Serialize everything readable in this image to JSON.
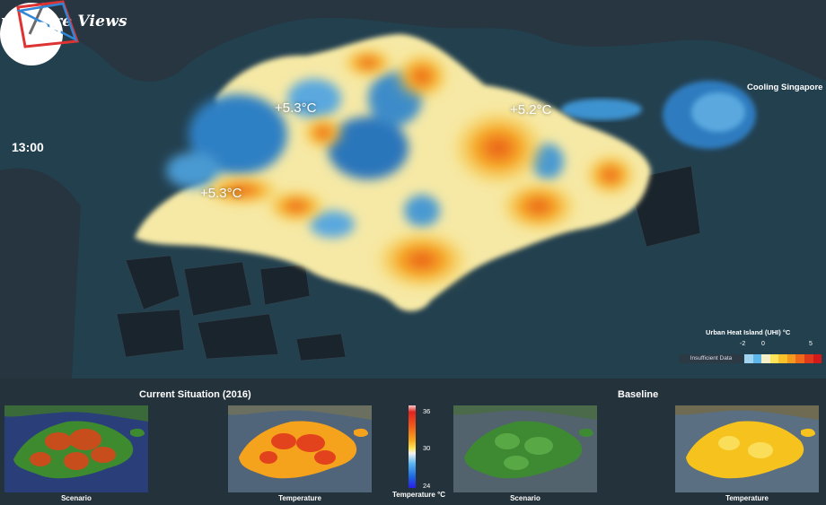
{
  "header": {
    "title": "ingapore Views"
  },
  "clock": {
    "time": "13:00"
  },
  "annotations": [
    "+5.3°C",
    "+5.2°C",
    "+5.3°C"
  ],
  "logo": {
    "mark": "CS",
    "subtitle": "Cooling Singapore"
  },
  "legend": {
    "title": "Urban Heat Island (UHI) °C",
    "ticks": [
      "-2",
      "0",
      "5"
    ],
    "insufficient_label": "Insufficient Data",
    "colors": [
      "#9fd3ef",
      "#5eb6ea",
      "#f4f0c8",
      "#fde45a",
      "#f9c22b",
      "#f39a1e",
      "#ee6a1a",
      "#e03a1c",
      "#d31a1a"
    ]
  },
  "panels": {
    "current_title": "Current Situation (2016)",
    "baseline_title": "Baseline",
    "labels": [
      "Scenario",
      "Temperature",
      "Scenario",
      "Temperature"
    ]
  },
  "temperature_scale": {
    "ticks": [
      "36",
      "30",
      "24"
    ],
    "label": "Temperature °C"
  }
}
